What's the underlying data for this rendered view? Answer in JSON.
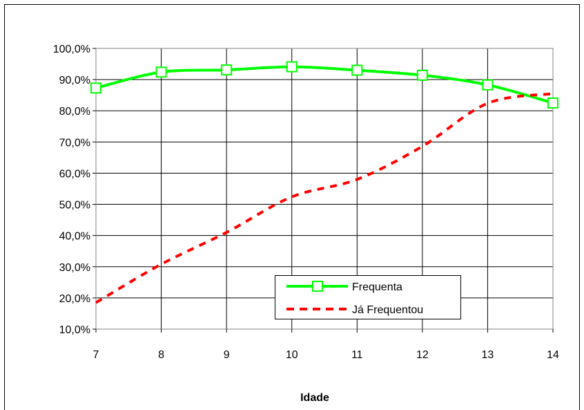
{
  "chart_data": {
    "type": "line",
    "title": "",
    "xlabel": "Idade",
    "ylabel": "",
    "x": [
      7,
      8,
      9,
      10,
      11,
      12,
      13,
      14
    ],
    "x_tick_labels": [
      "7",
      "8",
      "9",
      "10",
      "11",
      "12",
      "13",
      "14"
    ],
    "ylim": [
      10,
      100
    ],
    "y_tick_values": [
      10,
      20,
      30,
      40,
      50,
      60,
      70,
      80,
      90,
      100
    ],
    "y_tick_labels": [
      "10,0%",
      "20,0%",
      "30,0%",
      "40,0%",
      "50,0%",
      "60,0%",
      "70,0%",
      "80,0%",
      "90,0%",
      "100,0%"
    ],
    "grid": true,
    "legend_position": "bottom-right",
    "series": [
      {
        "name": "Frequenta",
        "values": [
          87.3,
          92.4,
          93.1,
          94.1,
          93.0,
          91.4,
          88.3,
          82.5
        ],
        "color": "#00ff00",
        "style": "solid",
        "marker": "open-square"
      },
      {
        "name": "Já Frequentou",
        "values": [
          18.5,
          30.8,
          41.0,
          52.4,
          58.0,
          68.6,
          82.4,
          85.5
        ],
        "color": "#ff0000",
        "style": "dashed",
        "marker": "none"
      }
    ]
  }
}
